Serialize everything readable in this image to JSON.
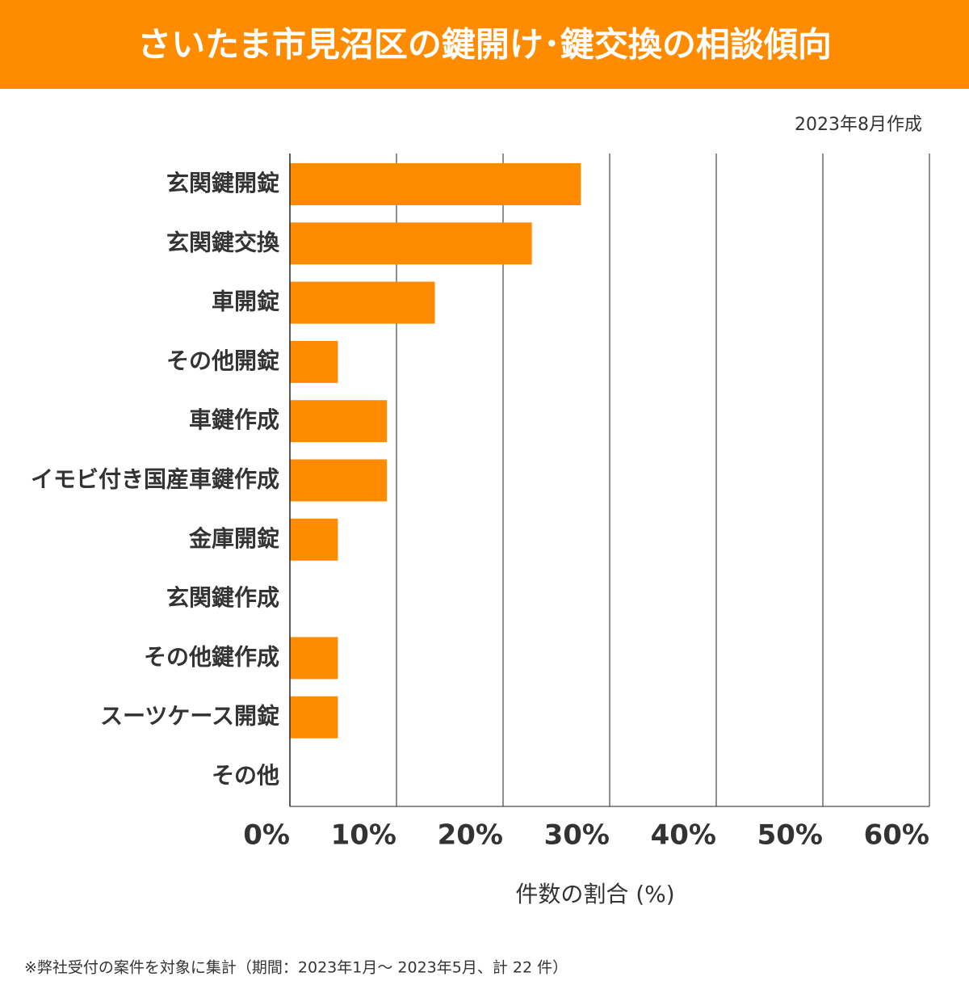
{
  "chart_data": {
    "type": "bar",
    "orientation": "horizontal",
    "title": "さいたま市見沼区の鍵開け･鍵交換の相談傾向",
    "subtitle": "2023年8月作成",
    "x_label": "件数の割合 (%)",
    "note": "※弊社受付の案件を対象に集計（期間：2023年1月～ 2023年5月、計 22 件）",
    "categories": [
      "玄関鍵開錠",
      "玄関鍵交換",
      "車開錠",
      "その他開錠",
      "車鍵作成",
      "イモビ付き国産車鍵作成",
      "金庫開錠",
      "玄関鍵作成",
      "その他鍵作成",
      "スーツケース開錠",
      "その他"
    ],
    "values": [
      27.3,
      22.7,
      13.6,
      4.5,
      9.1,
      9.1,
      4.5,
      0,
      4.5,
      4.5,
      0
    ],
    "color": "#ff8c00",
    "xlim": [
      0,
      60
    ],
    "xticks": [
      {
        "value": 0,
        "label": "0%"
      },
      {
        "value": 10,
        "label": "10%"
      },
      {
        "value": 20,
        "label": "20%"
      },
      {
        "value": 30,
        "label": "30%"
      },
      {
        "value": 40,
        "label": "40%"
      },
      {
        "value": 50,
        "label": "50%"
      },
      {
        "value": 60,
        "label": "60%"
      }
    ],
    "grid": true
  }
}
